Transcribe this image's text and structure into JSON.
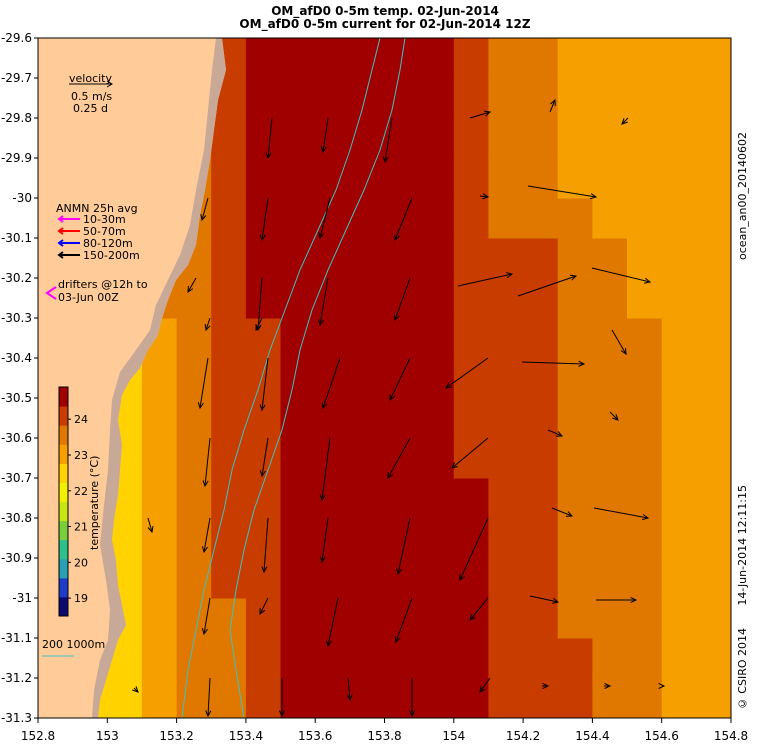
{
  "header": {
    "title_line1": "OM_afD0 0-5m temp. 02-Jun-2014",
    "title_line2": "OM_afD0 0-5m current for 02-Jun-2014 12Z"
  },
  "side_labels": {
    "run_id": "ocean_an00_20140602",
    "timestamp": "14-Jun-2014 12:11:15",
    "copyright": "© CSIRO 2014"
  },
  "velocity_key": {
    "title": "velocity",
    "speed": "0.5 m/s",
    "duration": "0.25 d"
  },
  "anmn_legend": {
    "title": "ANMN 25h avg",
    "entries": [
      {
        "label": "10-30m",
        "color": "#ff00ff"
      },
      {
        "label": "50-70m",
        "color": "#ff0000"
      },
      {
        "label": "80-120m",
        "color": "#0000ff"
      },
      {
        "label": "150-200m",
        "color": "#000000"
      }
    ]
  },
  "drifter_legend": {
    "line1": "drifters @12h to",
    "line2": "03-Jun 00Z",
    "color": "#ff00ff"
  },
  "colorbar": {
    "label": "temperature (°C)",
    "ticks": [
      "19",
      "20",
      "21",
      "22",
      "23",
      "24"
    ],
    "min": 18.5,
    "max": 24.9,
    "colors": [
      "#0a0a70",
      "#1e3cc8",
      "#2aa0b4",
      "#2ec08c",
      "#7acd3c",
      "#c8e614",
      "#f0f000",
      "#ffd200",
      "#f5a000",
      "#e07800",
      "#c83c00",
      "#a00000"
    ]
  },
  "isobath_legend": {
    "label": "200  1000m",
    "color": "#40c0c0"
  },
  "axes": {
    "x_ticks": [
      "152.8",
      "153",
      "153.2",
      "153.4",
      "153.6",
      "153.8",
      "154",
      "154.2",
      "154.4",
      "154.6",
      "154.8"
    ],
    "y_ticks": [
      "-29.6",
      "-29.7",
      "-29.8",
      "-29.9",
      "-30",
      "-30.1",
      "-30.2",
      "-30.3",
      "-30.4",
      "-30.5",
      "-30.6",
      "-30.7",
      "-30.8",
      "-30.9",
      "-31",
      "-31.1",
      "-31.2",
      "-31.3"
    ],
    "lon_range": [
      152.8,
      154.8
    ],
    "lat_range": [
      -31.3,
      -29.6
    ]
  },
  "colors": {
    "land": "#ffcc99",
    "rock": "#c8a896",
    "isobath": "#40c0c0"
  }
}
